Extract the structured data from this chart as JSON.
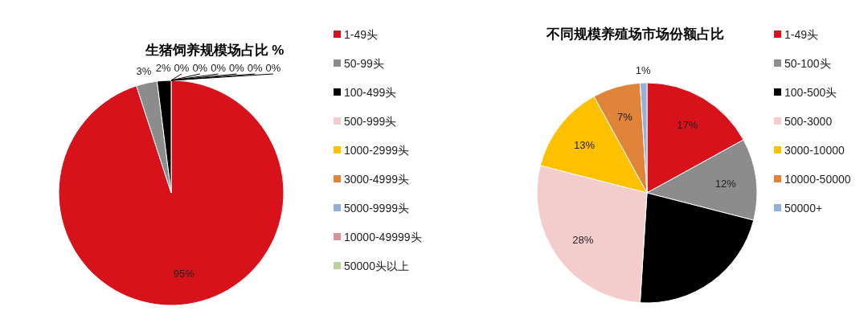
{
  "chart_data": [
    {
      "type": "pie",
      "title": "生猪饲养规模场占比 %",
      "legend": "right",
      "categories": [
        "1-49头",
        "50-99头",
        "100-499头",
        "500-999头",
        "1000-2999头",
        "3000-4999头",
        "5000-9999头",
        "10000-49999头",
        "50000头以上"
      ],
      "values": [
        95,
        3,
        2,
        0,
        0,
        0,
        0,
        0,
        0
      ],
      "value_labels": [
        "95%",
        "3%",
        "2%",
        "0%",
        "0%",
        "0%",
        "0%",
        "0%",
        "0%"
      ],
      "colors": [
        "#d7121b",
        "#8c8c8c",
        "#000000",
        "#f4cccc",
        "#ffc000",
        "#e0843a",
        "#95b0d8",
        "#d99594",
        "#b8d49a"
      ]
    },
    {
      "type": "pie",
      "title": "不同规模养殖场市场份额占比",
      "legend": "right",
      "categories": [
        "1-49头",
        "50-100头",
        "100-500头",
        "500-3000",
        "3000-10000",
        "10000-50000",
        "50000+"
      ],
      "values": [
        17,
        12,
        22,
        28,
        13,
        7,
        1
      ],
      "value_labels": [
        "17%",
        "12%",
        null,
        "28%",
        "13%",
        "7%",
        "1%"
      ],
      "colors": [
        "#d7121b",
        "#8c8c8c",
        "#000000",
        "#f4cccc",
        "#ffc000",
        "#e0843a",
        "#95b0d8"
      ]
    }
  ]
}
